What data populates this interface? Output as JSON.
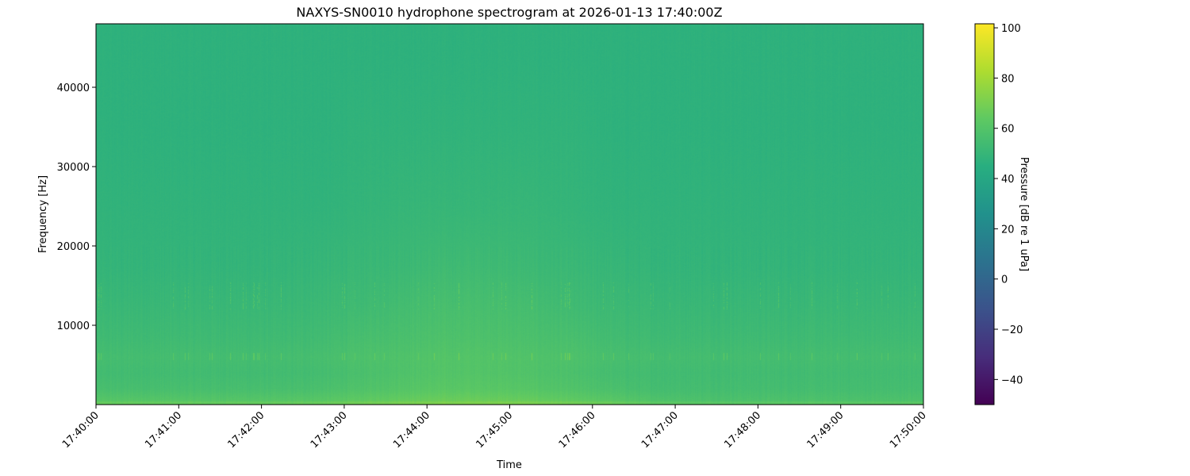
{
  "chart_data": {
    "type": "heatmap",
    "title": "NAXYS-SN0010 hydrophone spectrogram at 2026-01-13 17:40:00Z",
    "xlabel": "Time",
    "ylabel": "Frequency [Hz]",
    "colorbar_label": "Pressure [dB re 1 uPa]",
    "colormap": "viridis",
    "xlim": [
      "17:40:00",
      "17:50:00"
    ],
    "ylim": [
      0,
      48000
    ],
    "clim": [
      -50,
      101.6
    ],
    "x_ticks": [
      "17:40:00",
      "17:41:00",
      "17:42:00",
      "17:43:00",
      "17:44:00",
      "17:45:00",
      "17:46:00",
      "17:47:00",
      "17:48:00",
      "17:49:00",
      "17:50:00"
    ],
    "y_ticks": [
      10000,
      20000,
      30000,
      40000
    ],
    "y_tick_labels": [
      "10000",
      "20000",
      "30000",
      "40000"
    ],
    "colorbar_ticks": [
      -40,
      -20,
      0,
      20,
      40,
      60,
      80,
      100
    ],
    "colorbar_tick_labels": [
      "−40",
      "−20",
      "0",
      "20",
      "40",
      "60",
      "80",
      "100"
    ],
    "grid": false,
    "time_bins": [
      "17:40:15",
      "17:40:45",
      "17:41:15",
      "17:41:45",
      "17:42:15",
      "17:42:45",
      "17:43:15",
      "17:43:45",
      "17:44:15",
      "17:44:45",
      "17:45:15",
      "17:45:45",
      "17:46:15",
      "17:46:45",
      "17:47:15",
      "17:47:45",
      "17:48:15",
      "17:48:45",
      "17:49:15",
      "17:49:45"
    ],
    "freq_bins_hz": [
      [
        0,
        1000
      ],
      [
        1000,
        3000
      ],
      [
        3000,
        5000
      ],
      [
        5000,
        7000
      ],
      [
        7000,
        10000
      ],
      [
        10000,
        15000
      ],
      [
        15000,
        20000
      ],
      [
        20000,
        30000
      ],
      [
        30000,
        40000
      ],
      [
        40000,
        48000
      ]
    ],
    "values_db": [
      [
        61,
        61,
        61,
        61,
        61,
        62,
        64,
        66,
        67,
        67,
        66,
        64,
        62,
        59,
        58,
        58,
        58,
        58,
        58,
        58
      ],
      [
        56,
        56,
        56,
        56,
        56,
        57,
        59,
        61,
        62,
        62,
        61,
        59,
        57,
        55,
        55,
        55,
        55,
        55,
        55,
        55
      ],
      [
        54,
        54,
        54,
        54,
        54,
        55,
        57,
        59,
        60,
        60,
        59,
        57,
        55,
        54,
        54,
        54,
        54,
        54,
        54,
        54
      ],
      [
        55,
        55,
        55,
        55,
        55,
        56,
        58,
        59,
        60,
        60,
        59,
        58,
        56,
        55,
        55,
        55,
        55,
        55,
        55,
        55
      ],
      [
        53,
        53,
        53,
        53,
        53,
        54,
        56,
        57,
        58,
        58,
        57,
        56,
        54,
        53,
        53,
        53,
        53,
        53,
        53,
        53
      ],
      [
        51,
        51,
        51,
        51,
        51,
        52,
        53,
        55,
        56,
        56,
        55,
        53,
        52,
        51,
        51,
        51,
        51,
        51,
        51,
        51
      ],
      [
        49,
        49,
        49,
        49,
        49,
        50,
        51,
        52,
        53,
        53,
        52,
        51,
        50,
        49,
        49,
        49,
        49,
        49,
        49,
        49
      ],
      [
        48,
        48,
        48,
        48,
        48,
        48,
        49,
        50,
        50,
        50,
        50,
        49,
        48,
        48,
        48,
        48,
        48,
        48,
        48,
        48
      ],
      [
        47,
        47,
        47,
        47,
        47,
        47,
        48,
        48,
        48,
        48,
        48,
        48,
        47,
        47,
        47,
        47,
        47,
        47,
        47,
        47
      ],
      [
        47,
        47,
        47,
        47,
        47,
        47,
        47,
        47,
        47,
        47,
        47,
        47,
        47,
        47,
        47,
        47,
        47,
        47,
        47,
        47
      ]
    ]
  }
}
